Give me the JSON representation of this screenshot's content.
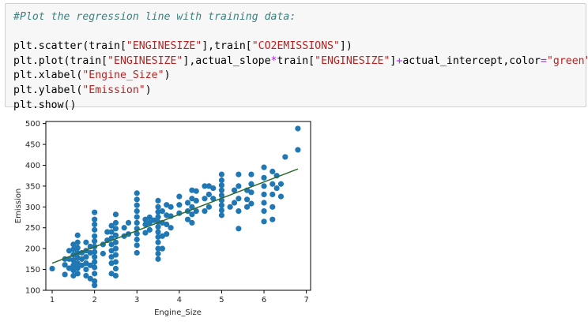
{
  "code_cell": {
    "lines": [
      [
        {
          "t": "#Plot the regression line with training data:",
          "c": "comment"
        }
      ],
      [
        {
          "t": "",
          "c": "plain"
        }
      ],
      [
        {
          "t": "plt.scatter(train[",
          "c": "plain"
        },
        {
          "t": "\"ENGINESIZE\"",
          "c": "str"
        },
        {
          "t": "],train[",
          "c": "plain"
        },
        {
          "t": "\"CO2EMISSIONS\"",
          "c": "str"
        },
        {
          "t": "])",
          "c": "plain"
        }
      ],
      [
        {
          "t": "plt.plot(train[",
          "c": "plain"
        },
        {
          "t": "\"ENGINESIZE\"",
          "c": "str"
        },
        {
          "t": "],actual_slope",
          "c": "plain"
        },
        {
          "t": "*",
          "c": "op"
        },
        {
          "t": "train[",
          "c": "plain"
        },
        {
          "t": "\"ENGINESIZE\"",
          "c": "str"
        },
        {
          "t": "]",
          "c": "plain"
        },
        {
          "t": "+",
          "c": "op"
        },
        {
          "t": "actual_intercept,color",
          "c": "plain"
        },
        {
          "t": "=",
          "c": "op"
        },
        {
          "t": "\"green\"",
          "c": "str"
        },
        {
          "t": ")",
          "c": "plain"
        }
      ],
      [
        {
          "t": "plt.xlabel(",
          "c": "plain"
        },
        {
          "t": "\"Engine_Size\"",
          "c": "str"
        },
        {
          "t": ")",
          "c": "plain"
        }
      ],
      [
        {
          "t": "plt.ylabel(",
          "c": "plain"
        },
        {
          "t": "\"Emission\"",
          "c": "str"
        },
        {
          "t": ")",
          "c": "plain"
        }
      ],
      [
        {
          "t": "plt.show()",
          "c": "plain"
        }
      ]
    ]
  },
  "chart_data": {
    "type": "scatter",
    "title": "",
    "xlabel": "Engine_Size",
    "ylabel": "Emission",
    "xlim": [
      0.85,
      7.1
    ],
    "ylim": [
      100,
      505
    ],
    "xticks": [
      1,
      2,
      3,
      4,
      5,
      6,
      7
    ],
    "yticks": [
      100,
      150,
      200,
      250,
      300,
      350,
      400,
      450,
      500
    ],
    "grid": false,
    "legend": "none",
    "marker_color": "#1f77b4",
    "line_color": "#2d6a2d",
    "regression_line": {
      "x": [
        1.0,
        6.8
      ],
      "y": [
        165,
        391
      ]
    },
    "points": [
      [
        1.0,
        152
      ],
      [
        1.3,
        138
      ],
      [
        1.3,
        161
      ],
      [
        1.3,
        175
      ],
      [
        1.4,
        153
      ],
      [
        1.4,
        175
      ],
      [
        1.4,
        195
      ],
      [
        1.5,
        135
      ],
      [
        1.5,
        148
      ],
      [
        1.5,
        160
      ],
      [
        1.5,
        172
      ],
      [
        1.5,
        185
      ],
      [
        1.5,
        198
      ],
      [
        1.5,
        210
      ],
      [
        1.6,
        140
      ],
      [
        1.6,
        153
      ],
      [
        1.6,
        165
      ],
      [
        1.6,
        178
      ],
      [
        1.6,
        190
      ],
      [
        1.6,
        202
      ],
      [
        1.6,
        215
      ],
      [
        1.6,
        232
      ],
      [
        1.7,
        160
      ],
      [
        1.7,
        175
      ],
      [
        1.7,
        190
      ],
      [
        1.8,
        135
      ],
      [
        1.8,
        150
      ],
      [
        1.8,
        165
      ],
      [
        1.8,
        180
      ],
      [
        1.8,
        195
      ],
      [
        1.8,
        215
      ],
      [
        1.9,
        128
      ],
      [
        1.9,
        160
      ],
      [
        1.9,
        190
      ],
      [
        1.9,
        205
      ],
      [
        2.0,
        112
      ],
      [
        2.0,
        122
      ],
      [
        2.0,
        140
      ],
      [
        2.0,
        155
      ],
      [
        2.0,
        168
      ],
      [
        2.0,
        180
      ],
      [
        2.0,
        192
      ],
      [
        2.0,
        205
      ],
      [
        2.0,
        218
      ],
      [
        2.0,
        230
      ],
      [
        2.0,
        245
      ],
      [
        2.0,
        258
      ],
      [
        2.0,
        270
      ],
      [
        2.0,
        287
      ],
      [
        2.2,
        188
      ],
      [
        2.2,
        210
      ],
      [
        2.3,
        220
      ],
      [
        2.3,
        240
      ],
      [
        2.4,
        140
      ],
      [
        2.4,
        165
      ],
      [
        2.4,
        180
      ],
      [
        2.4,
        195
      ],
      [
        2.4,
        210
      ],
      [
        2.4,
        225
      ],
      [
        2.4,
        240
      ],
      [
        2.4,
        255
      ],
      [
        2.5,
        135
      ],
      [
        2.5,
        152
      ],
      [
        2.5,
        168
      ],
      [
        2.5,
        185
      ],
      [
        2.5,
        200
      ],
      [
        2.5,
        215
      ],
      [
        2.5,
        232
      ],
      [
        2.5,
        248
      ],
      [
        2.5,
        262
      ],
      [
        2.5,
        282
      ],
      [
        2.7,
        230
      ],
      [
        2.7,
        250
      ],
      [
        2.8,
        235
      ],
      [
        2.8,
        262
      ],
      [
        3.0,
        190
      ],
      [
        3.0,
        208
      ],
      [
        3.0,
        222
      ],
      [
        3.0,
        236
      ],
      [
        3.0,
        248
      ],
      [
        3.0,
        262
      ],
      [
        3.0,
        276
      ],
      [
        3.0,
        290
      ],
      [
        3.0,
        304
      ],
      [
        3.0,
        318
      ],
      [
        3.0,
        333
      ],
      [
        3.2,
        238
      ],
      [
        3.2,
        258
      ],
      [
        3.2,
        270
      ],
      [
        3.3,
        245
      ],
      [
        3.3,
        262
      ],
      [
        3.3,
        275
      ],
      [
        3.4,
        268
      ],
      [
        3.5,
        175
      ],
      [
        3.5,
        188
      ],
      [
        3.5,
        200
      ],
      [
        3.5,
        215
      ],
      [
        3.5,
        228
      ],
      [
        3.5,
        240
      ],
      [
        3.5,
        252
      ],
      [
        3.5,
        264
      ],
      [
        3.5,
        276
      ],
      [
        3.5,
        288
      ],
      [
        3.5,
        300
      ],
      [
        3.5,
        315
      ],
      [
        3.6,
        200
      ],
      [
        3.6,
        230
      ],
      [
        3.6,
        262
      ],
      [
        3.6,
        290
      ],
      [
        3.7,
        235
      ],
      [
        3.7,
        258
      ],
      [
        3.7,
        280
      ],
      [
        3.7,
        305
      ],
      [
        3.8,
        250
      ],
      [
        3.8,
        278
      ],
      [
        3.8,
        300
      ],
      [
        4.0,
        285
      ],
      [
        4.0,
        305
      ],
      [
        4.0,
        325
      ],
      [
        4.2,
        270
      ],
      [
        4.2,
        290
      ],
      [
        4.2,
        310
      ],
      [
        4.3,
        262
      ],
      [
        4.3,
        282
      ],
      [
        4.3,
        300
      ],
      [
        4.3,
        320
      ],
      [
        4.3,
        340
      ],
      [
        4.4,
        290
      ],
      [
        4.4,
        315
      ],
      [
        4.4,
        338
      ],
      [
        4.6,
        290
      ],
      [
        4.6,
        320
      ],
      [
        4.6,
        350
      ],
      [
        4.7,
        300
      ],
      [
        4.7,
        330
      ],
      [
        4.7,
        350
      ],
      [
        4.8,
        320
      ],
      [
        4.8,
        345
      ],
      [
        5.0,
        280
      ],
      [
        5.0,
        292
      ],
      [
        5.0,
        304
      ],
      [
        5.0,
        316
      ],
      [
        5.0,
        328
      ],
      [
        5.0,
        340
      ],
      [
        5.0,
        352
      ],
      [
        5.0,
        364
      ],
      [
        5.0,
        378
      ],
      [
        5.2,
        300
      ],
      [
        5.3,
        310
      ],
      [
        5.3,
        340
      ],
      [
        5.4,
        248
      ],
      [
        5.4,
        290
      ],
      [
        5.4,
        320
      ],
      [
        5.4,
        350
      ],
      [
        5.4,
        378
      ],
      [
        5.6,
        300
      ],
      [
        5.6,
        318
      ],
      [
        5.6,
        340
      ],
      [
        5.7,
        308
      ],
      [
        5.7,
        335
      ],
      [
        5.7,
        355
      ],
      [
        5.7,
        378
      ],
      [
        6.0,
        265
      ],
      [
        6.0,
        290
      ],
      [
        6.0,
        310
      ],
      [
        6.0,
        330
      ],
      [
        6.0,
        350
      ],
      [
        6.0,
        370
      ],
      [
        6.0,
        395
      ],
      [
        6.2,
        270
      ],
      [
        6.2,
        300
      ],
      [
        6.2,
        330
      ],
      [
        6.2,
        355
      ],
      [
        6.2,
        385
      ],
      [
        6.3,
        345
      ],
      [
        6.3,
        375
      ],
      [
        6.4,
        325
      ],
      [
        6.4,
        355
      ],
      [
        6.5,
        420
      ],
      [
        6.8,
        488
      ],
      [
        6.8,
        437
      ]
    ]
  }
}
